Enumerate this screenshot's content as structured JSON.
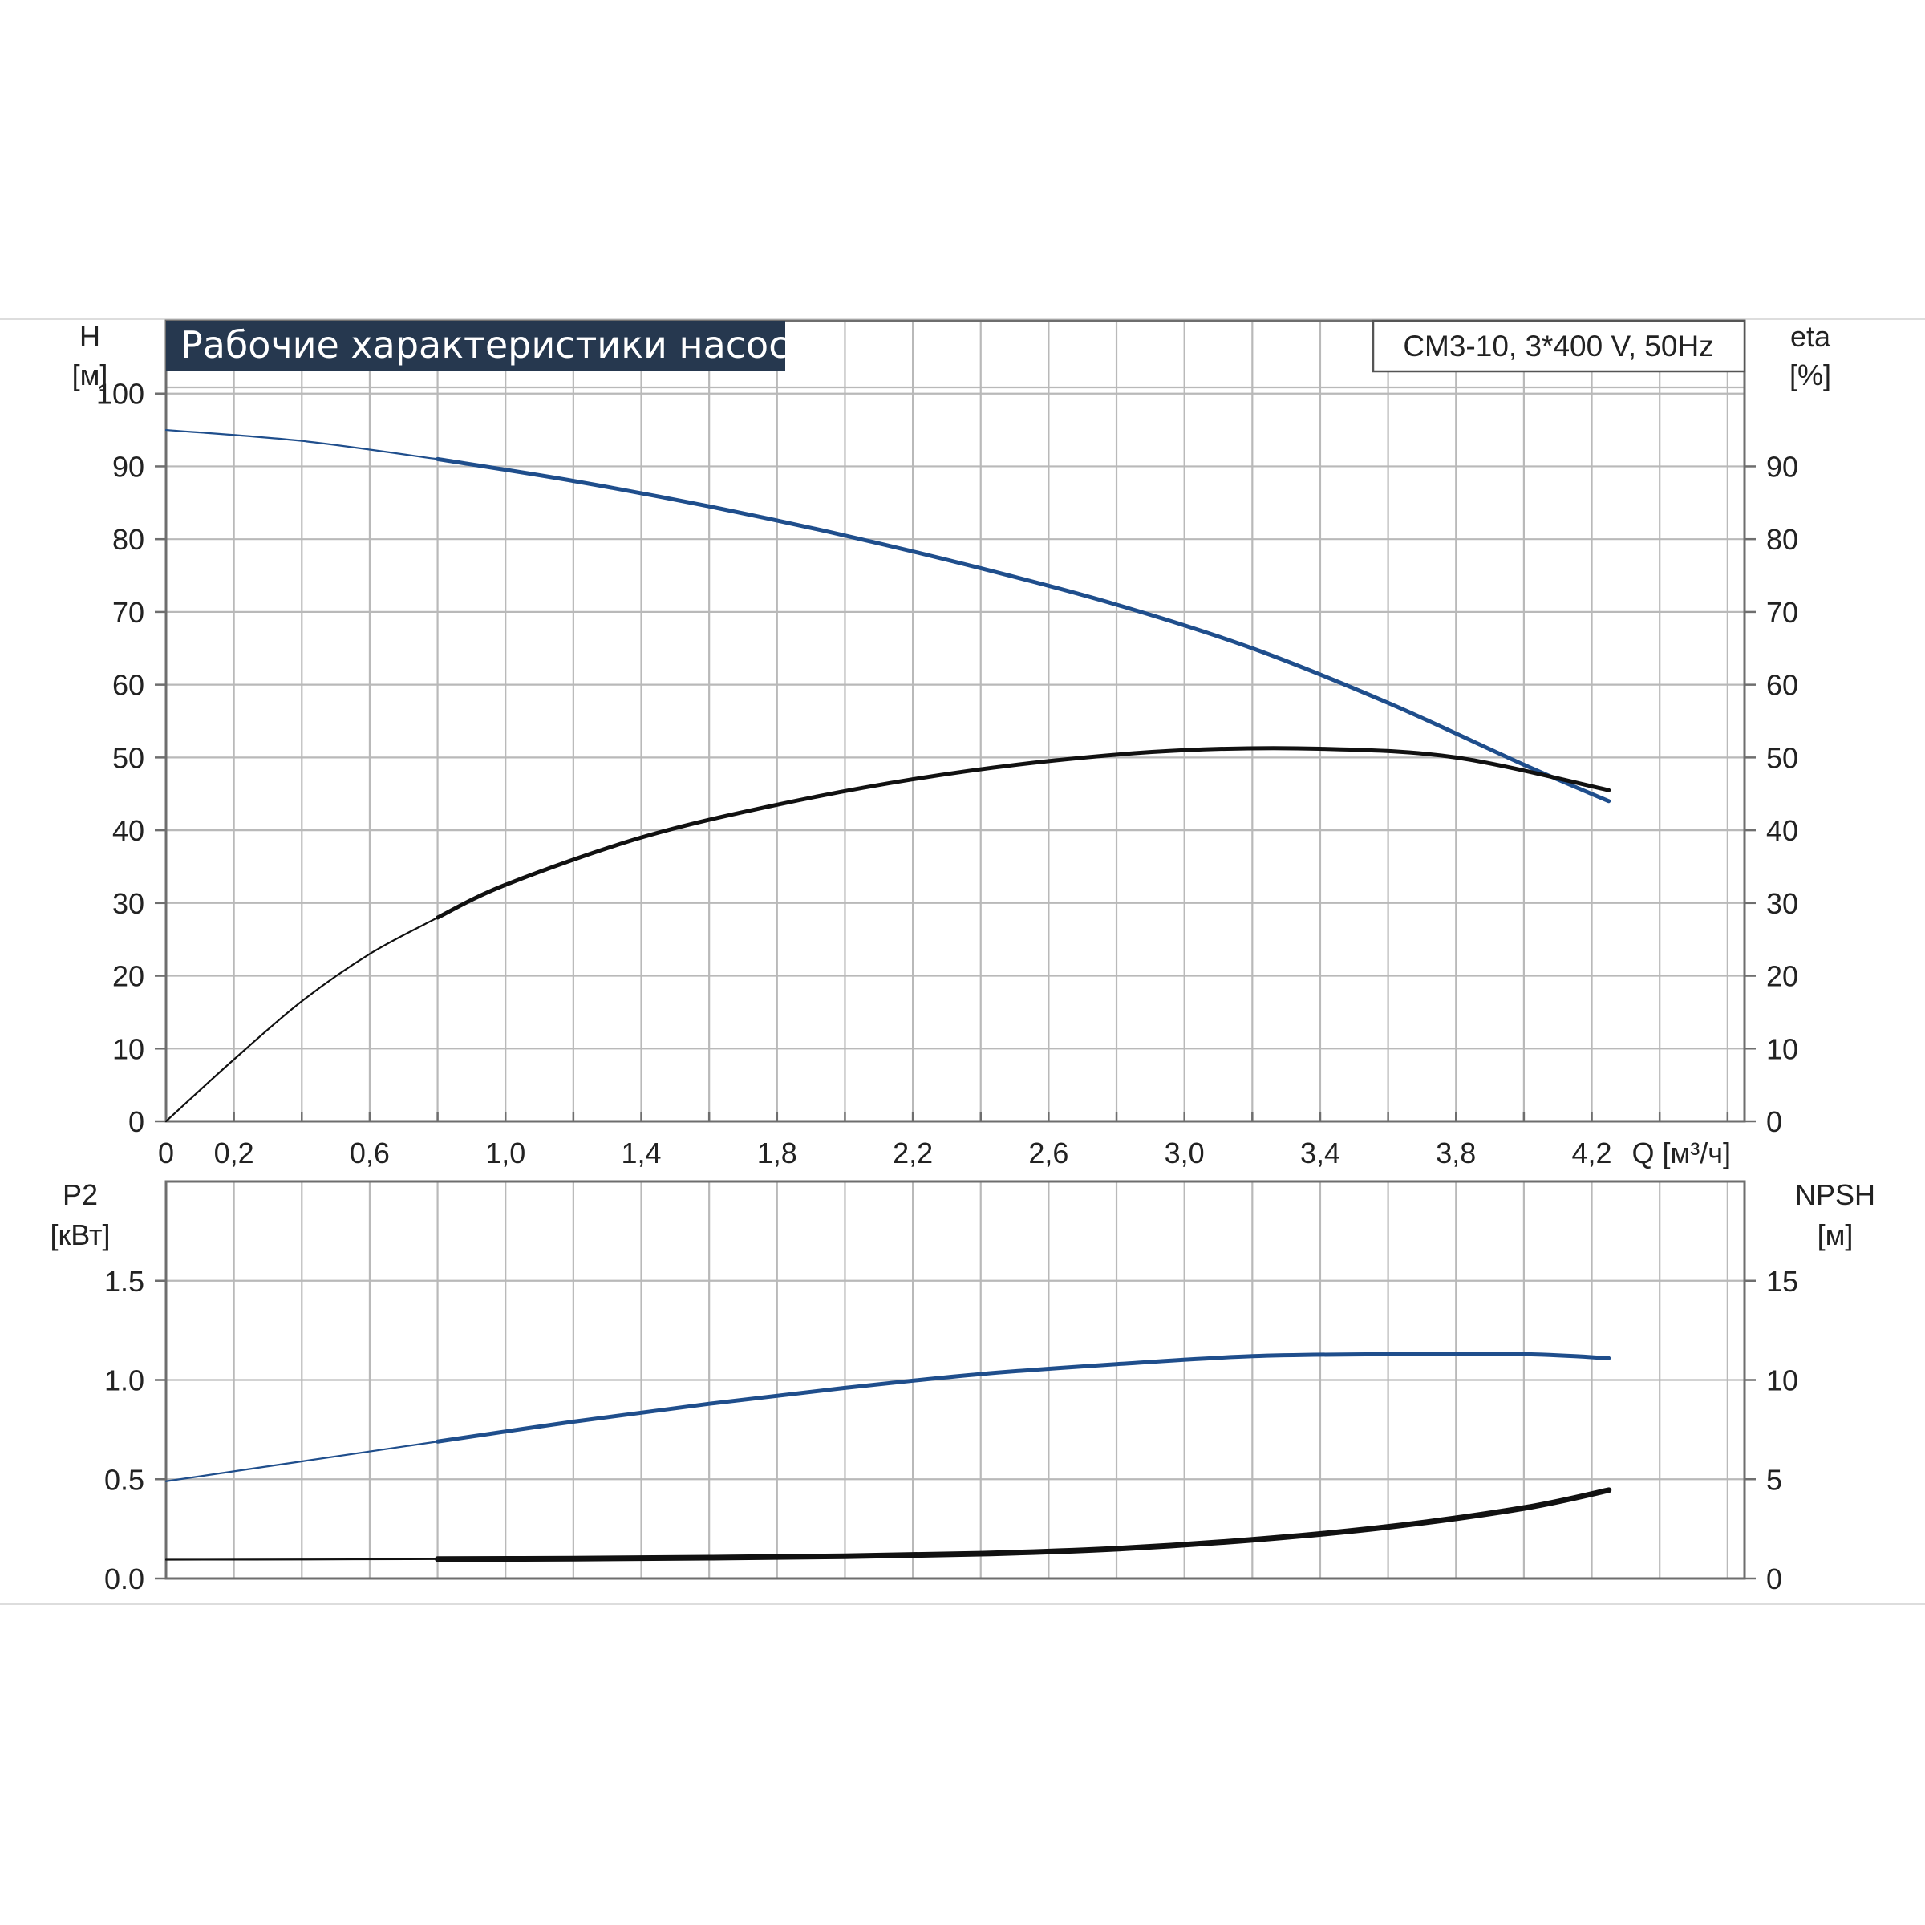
{
  "title": "Рабочие характеристики насоса",
  "model": "CM3-10, 3*400 V, 50Hz",
  "colors": {
    "blue": "#1f4e8c",
    "black": "#111111",
    "grid": "#b9b9b9",
    "title_bg": "#26384f"
  },
  "chart_data": [
    {
      "type": "line",
      "x_label": "Q [м³/ч]",
      "x_ticks": [
        "0",
        "0,2",
        "0,6",
        "1,0",
        "1,4",
        "1,8",
        "2,2",
        "2,6",
        "3,0",
        "3,4",
        "3,8",
        "4,2"
      ],
      "xlim": [
        0,
        4.65
      ],
      "y_left_label": {
        "name": "H",
        "unit": "[м]"
      },
      "y_left_ticks": [
        "0",
        "10",
        "20",
        "30",
        "40",
        "50",
        "60",
        "70",
        "80",
        "90",
        "100"
      ],
      "y_left_lim": [
        0,
        110
      ],
      "y_right_label": {
        "name": "eta",
        "unit": "[%]"
      },
      "y_right_ticks": [
        "0",
        "10",
        "20",
        "30",
        "40",
        "50",
        "60",
        "70",
        "80",
        "90"
      ],
      "y_right_lim": [
        0,
        110
      ],
      "grid": true,
      "series": [
        {
          "axis": "left",
          "color": "blue",
          "x": [
            0,
            0.4,
            0.8,
            1.2,
            1.6,
            2.0,
            2.4,
            2.8,
            3.2,
            3.6,
            4.0,
            4.25
          ],
          "y": [
            95,
            93.5,
            91,
            88,
            84.5,
            80.5,
            76,
            71,
            65,
            57.5,
            49,
            44
          ]
        },
        {
          "axis": "right",
          "color": "black",
          "x": [
            0,
            0.2,
            0.4,
            0.6,
            0.8,
            1.0,
            1.4,
            1.8,
            2.2,
            2.6,
            3.0,
            3.4,
            3.8,
            4.25
          ],
          "y": [
            0,
            8.5,
            16.5,
            23,
            28,
            32.5,
            39,
            43.5,
            47,
            49.5,
            51,
            51.2,
            50,
            45.5
          ]
        }
      ]
    },
    {
      "type": "line",
      "xlim": [
        0,
        4.65
      ],
      "y_left_label": {
        "name": "P2",
        "unit": "[кВт]"
      },
      "y_left_ticks": [
        "0.0",
        "0.5",
        "1.0",
        "1.5"
      ],
      "y_left_lim": [
        0,
        2.0
      ],
      "y_right_label": {
        "name": "NPSH",
        "unit": "[м]"
      },
      "y_right_ticks": [
        "0",
        "5",
        "10",
        "15"
      ],
      "y_right_lim": [
        0,
        20
      ],
      "grid": true,
      "series": [
        {
          "axis": "left",
          "color": "blue",
          "x": [
            0,
            0.4,
            0.8,
            1.2,
            1.6,
            2.0,
            2.4,
            2.8,
            3.2,
            3.6,
            4.0,
            4.25
          ],
          "y": [
            0.49,
            0.59,
            0.69,
            0.79,
            0.88,
            0.96,
            1.03,
            1.08,
            1.12,
            1.13,
            1.13,
            1.11
          ]
        },
        {
          "axis": "right",
          "color": "black",
          "x": [
            0,
            0.4,
            0.8,
            1.2,
            1.6,
            2.0,
            2.4,
            2.8,
            3.2,
            3.6,
            4.0,
            4.25
          ],
          "y": [
            0.95,
            0.96,
            0.98,
            1.0,
            1.05,
            1.12,
            1.25,
            1.5,
            1.95,
            2.6,
            3.55,
            4.45
          ]
        }
      ]
    }
  ]
}
